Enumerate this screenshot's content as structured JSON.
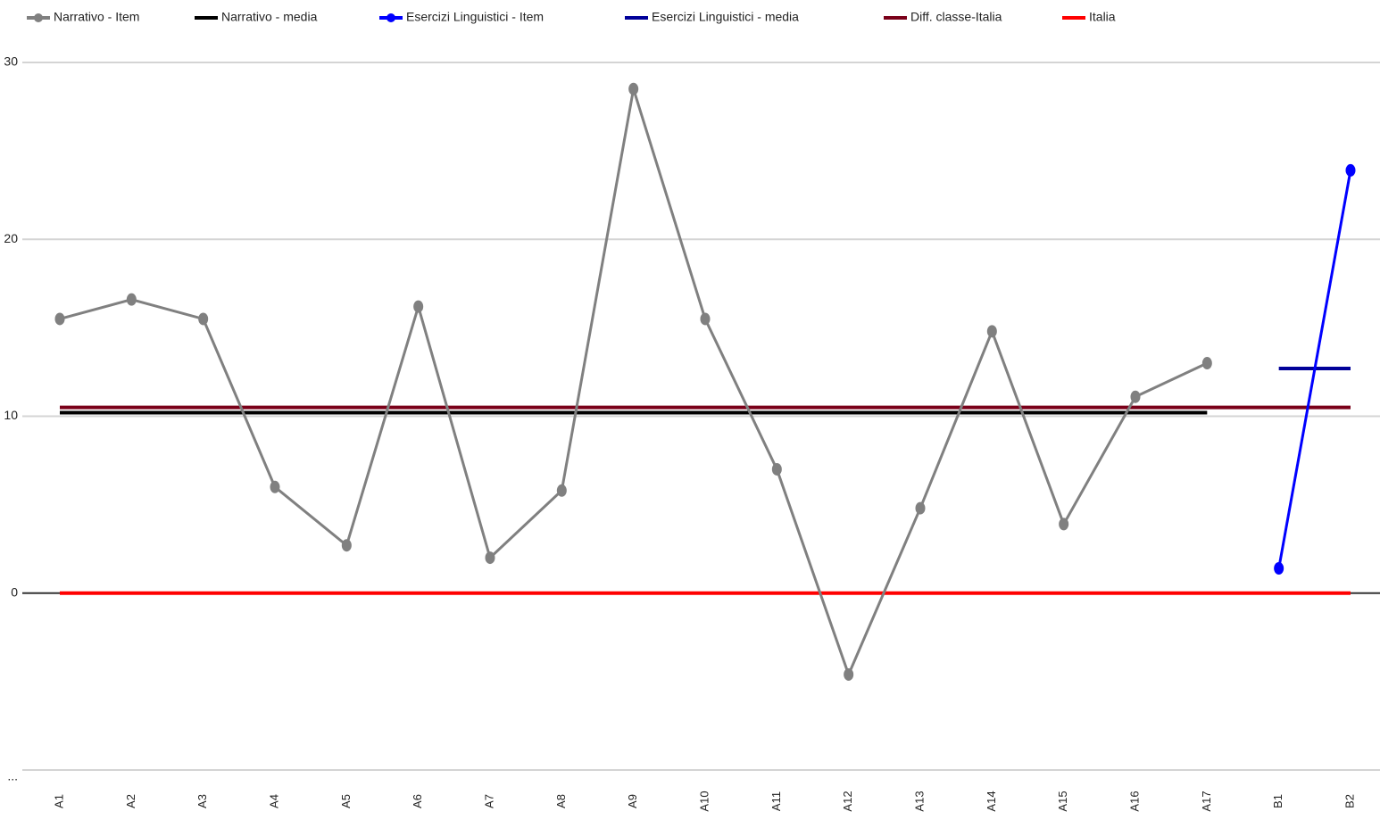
{
  "chart_data": {
    "type": "line",
    "categories": [
      "A1",
      "A2",
      "A3",
      "A4",
      "A5",
      "A6",
      "A7",
      "A8",
      "A9",
      "A10",
      "A11",
      "A12",
      "A13",
      "A14",
      "A15",
      "A16",
      "A17",
      "B1",
      "B2"
    ],
    "series": [
      {
        "name": "Narrativo - Item",
        "color": "#808080",
        "markers": true,
        "values": [
          15.5,
          16.6,
          15.5,
          6.0,
          2.7,
          16.2,
          2.0,
          5.8,
          28.5,
          15.5,
          7.0,
          -4.6,
          4.8,
          14.8,
          3.9,
          11.1,
          13.0,
          null,
          null
        ]
      },
      {
        "name": "Narrativo - media",
        "color": "#000000",
        "markers": false,
        "values": [
          10.2,
          10.2,
          10.2,
          10.2,
          10.2,
          10.2,
          10.2,
          10.2,
          10.2,
          10.2,
          10.2,
          10.2,
          10.2,
          10.2,
          10.2,
          10.2,
          10.2,
          null,
          null
        ]
      },
      {
        "name": "Esercizi Linguistici - Item",
        "color": "#0000ff",
        "markers": true,
        "values": [
          null,
          null,
          null,
          null,
          null,
          null,
          null,
          null,
          null,
          null,
          null,
          null,
          null,
          null,
          null,
          null,
          null,
          1.4,
          23.9
        ]
      },
      {
        "name": "Esercizi Linguistici - media",
        "color": "#000099",
        "markers": false,
        "values": [
          null,
          null,
          null,
          null,
          null,
          null,
          null,
          null,
          null,
          null,
          null,
          null,
          null,
          null,
          null,
          null,
          null,
          12.7,
          12.7
        ]
      },
      {
        "name": "Diff. classe-Italia",
        "color": "#7a0019",
        "markers": false,
        "values": [
          10.5,
          10.5,
          10.5,
          10.5,
          10.5,
          10.5,
          10.5,
          10.5,
          10.5,
          10.5,
          10.5,
          10.5,
          10.5,
          10.5,
          10.5,
          10.5,
          10.5,
          10.5,
          10.5
        ]
      },
      {
        "name": "Italia",
        "color": "#ff0000",
        "markers": false,
        "values": [
          0,
          0,
          0,
          0,
          0,
          0,
          0,
          0,
          0,
          0,
          0,
          0,
          0,
          0,
          0,
          0,
          0,
          0,
          0
        ]
      }
    ],
    "ylim": [
      -10,
      30
    ],
    "yticks": [
      {
        "value": -10,
        "label": "..."
      },
      0,
      10,
      20,
      30
    ],
    "grid": true
  }
}
